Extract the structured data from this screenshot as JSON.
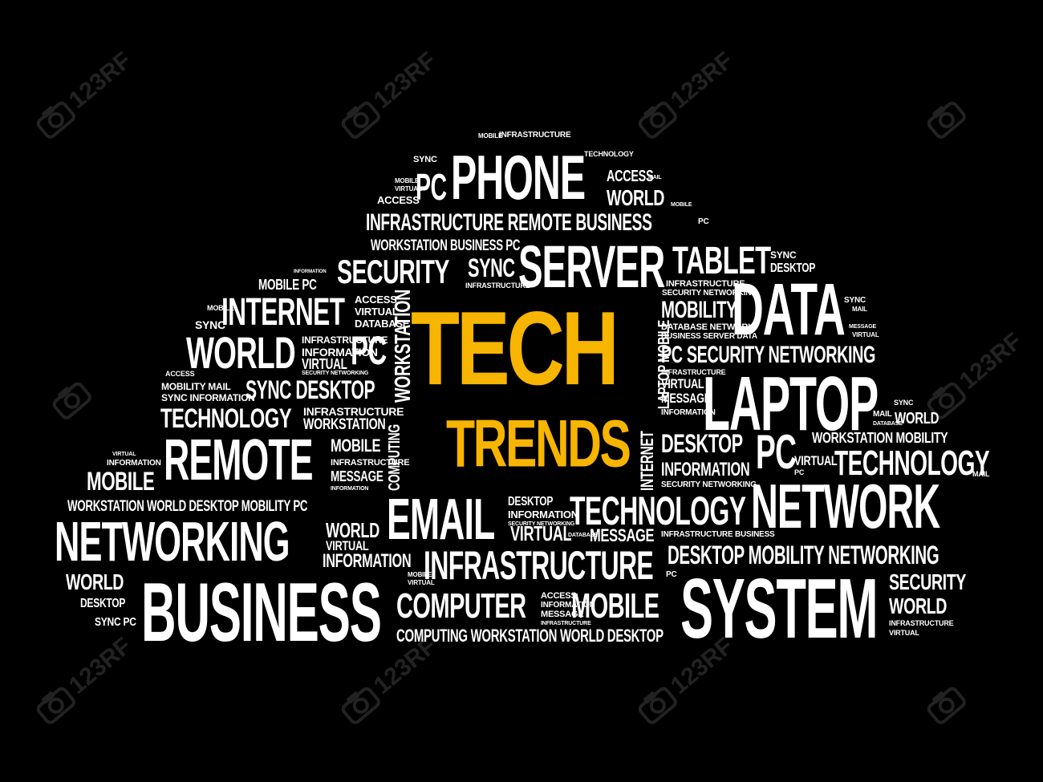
{
  "title": {
    "line1": "TECH",
    "line2": "TRENDS"
  },
  "colors": {
    "background": "#000000",
    "word": "#ffffff",
    "highlight": "#f7b500"
  },
  "watermark": {
    "text": "123RF",
    "registered": "®",
    "icon": "camera-icon"
  },
  "words": {
    "phone": "PHONE",
    "pc_top": "PC",
    "mobile_top": "MOBILE",
    "infrastructure_top": "INFRASTRUCTURE",
    "sync_top": "SYNC",
    "access_top": "ACCESS",
    "virtual_top": "VIRTUAL",
    "technology_top": "TECHNOLOGY",
    "access_r": "ACCESS",
    "world_r": "WORLD",
    "mail_top": "MAIL",
    "mobile_r": "MOBILE",
    "infra_remote_business": "INFRASTRUCTURE REMOTE BUSINESS",
    "pc_r2": "PC",
    "workstation_business_pc": "WORKSTATION  BUSINESS PC",
    "security": "SECURITY",
    "sync_mid": "SYNC",
    "infrastructure_small": "INFRASTRUCTURE",
    "server": "SERVER",
    "tablet": "TABLET",
    "sync_tab": "SYNC",
    "desktop_tab": "DESKTOP",
    "information_tiny": "INFORMATION",
    "mobile_pc": "MOBILE  PC",
    "access_l": "ACCESS",
    "virtual_l": "VIRTUAL",
    "database_l": "DATABASE",
    "internet": "INTERNET",
    "mobile_l3": "MOBILE",
    "sync_l3": "SYNC",
    "world": "WORLD",
    "infrastructure_l": "INFRASTRUCTURE",
    "information_l": "INFORMATION",
    "virtual_l2": "VIRTUAL",
    "security_networking_tiny": "SECURITY NETWORKING",
    "pc_l": "PC",
    "workstation_vert": "WORKSTATION",
    "computing_vert": "COMPUTING",
    "laptop_mobile_vert": "LAPTOP MOBILE",
    "internet_vert": "INTERNET",
    "access_l4": "ACCESS",
    "mobility_mail": "MOBILITY MAIL",
    "sync_information": "SYNC INFORMATION",
    "sync_desktop": "SYNC DESKTOP",
    "technology": "TECHNOLOGY",
    "infrastructure_l5": "INFRASTRUCTURE",
    "workstation_l5": "WORKSTATION",
    "virtual_l6": "VIRTUAL",
    "information_l6": "INFORMATION",
    "remote": "REMOTE",
    "mobile_mid": "MOBILE",
    "infrastructure_mid": "INFRASTRUCTURE",
    "message_mid": "MESSAGE",
    "information_tiny2": "INFORMATION",
    "mobile_big": "MOBILE",
    "workstation_row": "WORKSTATION   WORLD   DESKTOP   MOBILITY   PC",
    "networking": "NETWORKING",
    "world_mid": "WORLD",
    "virtual_mid": "VIRTUAL",
    "information_mid": "INFORMATION",
    "email": "EMAIL",
    "desktop_e": "DESKTOP",
    "information_e": "INFORMATION",
    "security_networking_e": "SECURITY NETWORKING",
    "virtual_e": "VIRTUAL",
    "database_e": "DATABASE",
    "technology_mid": "TECHNOLOGY",
    "message_e": "MESSAGE",
    "infrastructure_big": "INFRASTRUCTURE",
    "mobile_s": "MOBILE",
    "virtual_s": "VIRTUAL",
    "world_l": "WORLD",
    "desktop_l": "DESKTOP",
    "sync_pc": "SYNC PC",
    "business": "BUSINESS",
    "computer": "COMPUTER",
    "access_c": "ACCESS",
    "information_c": "INFORMATION",
    "message_c": "MESSAGE",
    "infrastructure_c": "INFRASTRUCTURE",
    "mobile_c": "MOBILE",
    "computing_row": "COMPUTING  WORKSTATION  WORLD  DESKTOP",
    "infrastructure_r1": "INFRASTRUCTURE",
    "security_networking_r1": "SECURITY NETWORKING",
    "mobility": "MOBILITY",
    "database_network": "DATABASE NETWORK",
    "business_server_data": "BUSINESS SERVER DATA",
    "data": "DATA",
    "sync_r": "SYNC",
    "mail_r": "MAIL",
    "message_r": "MESSAGE",
    "virtual_r": "VIRTUAL",
    "pc_security_networking": "PC SECURITY NETWORKING",
    "infrastructure_r2": "INFRASTRUCTURE",
    "virtual_r2": "VIRTUAL",
    "message_r2": "MESSAGE",
    "information_r2": "INFORMATION",
    "laptop": "LAPTOP",
    "sync_lap": "SYNC",
    "mail_lap": "MAIL",
    "world_lap": "WORLD",
    "database_lap": "DATABASE",
    "desktop_r": "DESKTOP",
    "pc_r": "PC",
    "workstation_mobility": "WORKSTATION MOBILITY",
    "information_r": "INFORMATION",
    "virtual_r3": "VIRTUAL",
    "pc_r3": "PC",
    "technology_r": "TECHNOLOGY",
    "mail_r3": "MAIL",
    "security_networking_r3": "SECURITY NETWORKING",
    "network": "NETWORK",
    "infra_business": "INFRASTRUCTURE BUSINESS",
    "desktop_mobility_networking": "DESKTOP  MOBILITY  NETWORKING",
    "pc_sys": "PC",
    "system": "SYSTEM",
    "security_r": "SECURITY",
    "world_r2": "WORLD",
    "infrastructure_r4": "INFRASTRUCTURE",
    "virtual_r4": "VIRTUAL"
  }
}
